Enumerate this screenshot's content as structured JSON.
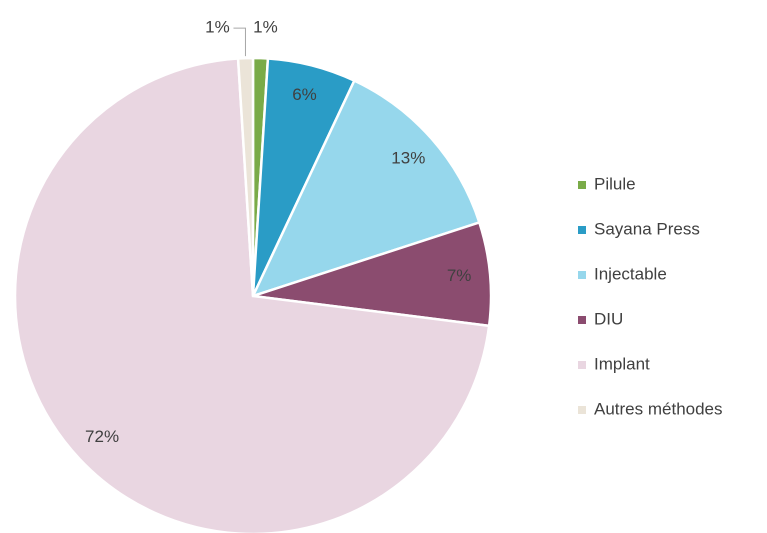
{
  "chart_data": {
    "type": "pie",
    "categories": [
      "Pilule",
      "Sayana Press",
      "Injectable",
      "DIU",
      "Implant",
      "Autres méthodes"
    ],
    "values": [
      1,
      6,
      13,
      7,
      72,
      1
    ],
    "value_labels": [
      "1%",
      "6%",
      "13%",
      "7%",
      "72%",
      "1%"
    ],
    "colors": [
      "#7aab48",
      "#2a9cc6",
      "#96d7ec",
      "#8b4c6f",
      "#e9d6e1",
      "#ebe4d8"
    ],
    "legend": "right"
  }
}
